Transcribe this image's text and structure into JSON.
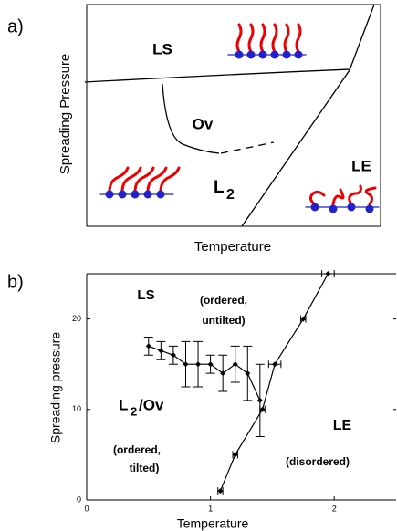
{
  "panel_a": {
    "label": "a)",
    "y_label": "Spreading Pressure",
    "x_label": "Temperature",
    "regions": {
      "ls": "LS",
      "ov": "Ov",
      "l": "L",
      "l_sub": "2",
      "le": "LE"
    }
  },
  "chart_data": {
    "type": "scatter",
    "panel_label": "b)",
    "x_label": "Temperature",
    "y_label": "Spreading pressure",
    "xlim": [
      0,
      2.5
    ],
    "ylim": [
      0,
      25
    ],
    "xticks": [
      0,
      1,
      2
    ],
    "yticks": [
      0,
      10,
      20
    ],
    "annotations": [
      "LS",
      "(ordered,",
      "untilted)",
      "L",
      "2",
      "/Ov",
      "(ordered,",
      "tilted)",
      "LE",
      "(disordered)"
    ],
    "series": [
      {
        "color": "#000000",
        "x": [
          0.5,
          0.6,
          0.7,
          0.8,
          0.9,
          1.0,
          1.1,
          1.2,
          1.3,
          1.4
        ],
        "values": [
          17,
          16.5,
          16,
          15,
          15,
          15,
          14,
          15,
          14,
          11
        ],
        "yerr": [
          1,
          1,
          1,
          2.5,
          2.5,
          1,
          2,
          2,
          3,
          4
        ]
      },
      {
        "color": "#000000",
        "x": [
          1.08,
          1.2,
          1.42,
          1.52,
          1.75,
          1.95
        ],
        "values": [
          1,
          5,
          10,
          15,
          20,
          25
        ],
        "xerr": [
          0.02,
          0.02,
          0.02,
          0.05,
          0.02,
          0.05
        ]
      }
    ]
  }
}
